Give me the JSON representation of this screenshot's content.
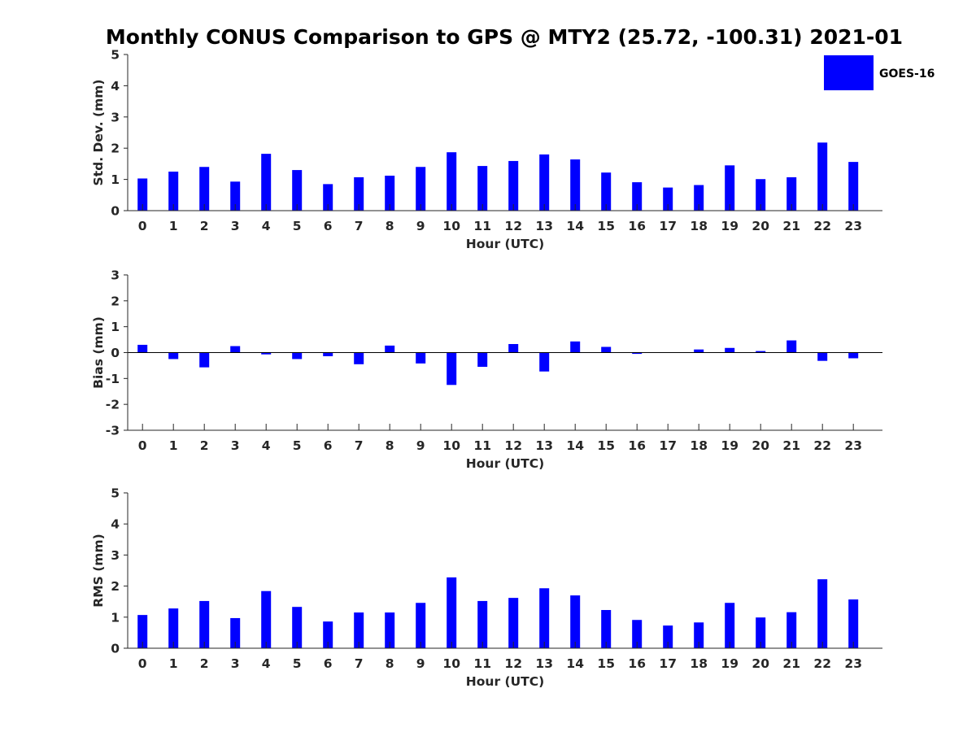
{
  "figure": {
    "title": "Monthly CONUS Comparison to GPS @ MTY2 (25.72, -100.31) 2021-01",
    "legend": {
      "label": "GOES-16",
      "color": "#0000ff",
      "placement": "top-right"
    }
  },
  "chart_data": [
    {
      "type": "bar",
      "xlabel": "Hour (UTC)",
      "ylabel": "Std. Dev. (mm)",
      "ylim": [
        0,
        5
      ],
      "yticks": [
        0,
        1,
        2,
        3,
        4,
        5
      ],
      "categories": [
        "0",
        "1",
        "2",
        "3",
        "4",
        "5",
        "6",
        "7",
        "8",
        "9",
        "10",
        "11",
        "12",
        "13",
        "14",
        "15",
        "16",
        "17",
        "18",
        "19",
        "20",
        "21",
        "22",
        "23"
      ],
      "series": [
        {
          "name": "GOES-16",
          "color": "#0000ff",
          "values": [
            1.03,
            1.25,
            1.4,
            0.93,
            1.82,
            1.3,
            0.85,
            1.07,
            1.12,
            1.4,
            1.87,
            1.43,
            1.59,
            1.8,
            1.64,
            1.22,
            0.91,
            0.74,
            0.82,
            1.45,
            1.01,
            1.07,
            2.18,
            1.56
          ]
        }
      ]
    },
    {
      "type": "bar",
      "xlabel": "Hour (UTC)",
      "ylabel": "Bias (mm)",
      "ylim": [
        -3,
        3
      ],
      "yticks": [
        -3,
        -2,
        -1,
        0,
        1,
        2,
        3
      ],
      "categories": [
        "0",
        "1",
        "2",
        "3",
        "4",
        "5",
        "6",
        "7",
        "8",
        "9",
        "10",
        "11",
        "12",
        "13",
        "14",
        "15",
        "16",
        "17",
        "18",
        "19",
        "20",
        "21",
        "22",
        "23"
      ],
      "series": [
        {
          "name": "GOES-16",
          "color": "#0000ff",
          "values": [
            0.3,
            -0.25,
            -0.57,
            0.25,
            -0.07,
            -0.25,
            -0.14,
            -0.45,
            0.27,
            -0.42,
            -1.25,
            -0.55,
            0.33,
            -0.73,
            0.43,
            0.22,
            -0.05,
            0.0,
            0.12,
            0.18,
            0.06,
            0.47,
            -0.32,
            -0.22
          ]
        }
      ]
    },
    {
      "type": "bar",
      "xlabel": "Hour (UTC)",
      "ylabel": "RMS (mm)",
      "ylim": [
        0,
        5
      ],
      "yticks": [
        0,
        1,
        2,
        3,
        4,
        5
      ],
      "categories": [
        "0",
        "1",
        "2",
        "3",
        "4",
        "5",
        "6",
        "7",
        "8",
        "9",
        "10",
        "11",
        "12",
        "13",
        "14",
        "15",
        "16",
        "17",
        "18",
        "19",
        "20",
        "21",
        "22",
        "23"
      ],
      "series": [
        {
          "name": "GOES-16",
          "color": "#0000ff",
          "values": [
            1.07,
            1.28,
            1.52,
            0.97,
            1.84,
            1.33,
            0.86,
            1.15,
            1.15,
            1.46,
            2.28,
            1.52,
            1.62,
            1.93,
            1.7,
            1.23,
            0.91,
            0.73,
            0.83,
            1.46,
            0.99,
            1.16,
            2.22,
            1.57
          ]
        }
      ]
    }
  ]
}
